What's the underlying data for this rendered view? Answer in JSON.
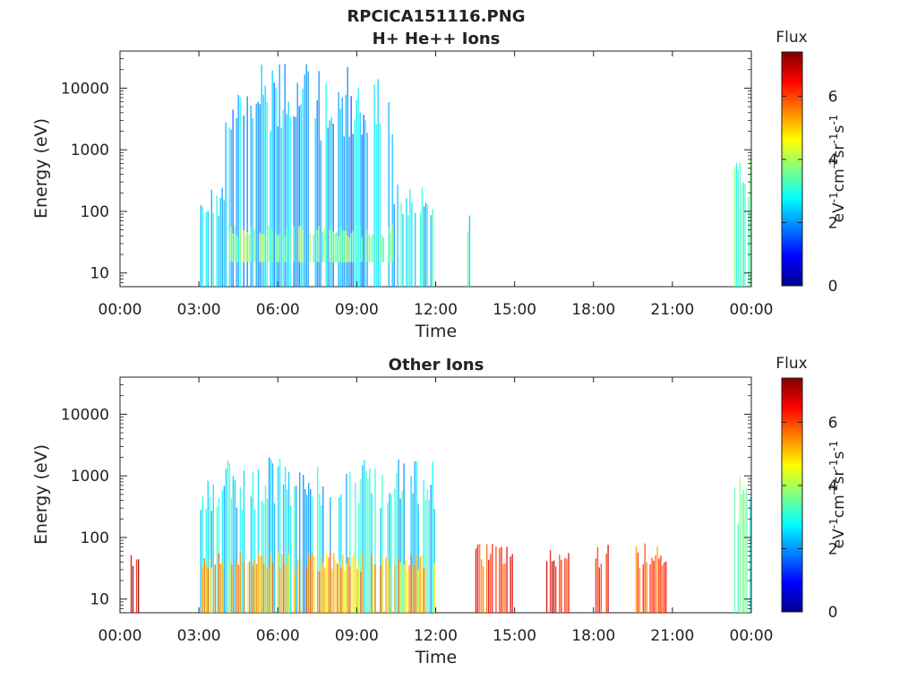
{
  "figure": {
    "title": "RPCICA151116.PNG"
  },
  "colorbar": {
    "title": "Flux",
    "label": "eV-1cm-2sr-1s-1",
    "range": [
      0,
      7.4
    ],
    "ticks": [
      "0",
      "2",
      "4",
      "6"
    ],
    "colormap": [
      "#00008f",
      "#0000ff",
      "#0080ff",
      "#00ffff",
      "#80ff80",
      "#ffff00",
      "#ff8000",
      "#ff0000",
      "#800000"
    ]
  },
  "chart_data": [
    {
      "type": "heatmap",
      "title": "H+ He++ Ions",
      "xlabel": "Time",
      "ylabel": "Energy (eV)",
      "x_ticks": [
        "00:00",
        "03:00",
        "06:00",
        "09:00",
        "12:00",
        "15:00",
        "18:00",
        "21:00",
        "00:00"
      ],
      "xlim_hours": [
        0,
        24
      ],
      "y_ticks": [
        "10",
        "100",
        "1000",
        "10000"
      ],
      "y_scale": "log",
      "ylim": [
        6,
        40000
      ],
      "flux_regions": [
        {
          "t_start": 3.05,
          "t_end": 4.0,
          "e_min": 6,
          "e_max": 300,
          "flux": 2.5
        },
        {
          "t_start": 4.0,
          "t_end": 10.4,
          "e_min": 6,
          "e_max": 25000,
          "flux": 2.2
        },
        {
          "t_start": 4.0,
          "t_end": 10.4,
          "e_min": 15,
          "e_max": 60,
          "flux": 3.6
        },
        {
          "t_start": 10.4,
          "t_end": 12.0,
          "e_min": 6,
          "e_max": 300,
          "flux": 2.6
        },
        {
          "t_start": 13.2,
          "t_end": 13.4,
          "e_min": 6,
          "e_max": 100,
          "flux": 2.8
        },
        {
          "t_start": 23.35,
          "t_end": 24.0,
          "e_min": 6,
          "e_max": 1000,
          "flux": 3.2
        }
      ]
    },
    {
      "type": "heatmap",
      "title": "Other Ions",
      "xlabel": "Time",
      "ylabel": "Energy (eV)",
      "x_ticks": [
        "00:00",
        "03:00",
        "06:00",
        "09:00",
        "12:00",
        "15:00",
        "18:00",
        "21:00",
        "00:00"
      ],
      "xlim_hours": [
        0,
        24
      ],
      "y_ticks": [
        "10",
        "100",
        "1000",
        "10000"
      ],
      "y_scale": "log",
      "ylim": [
        6,
        40000
      ],
      "flux_regions": [
        {
          "t_start": 0.4,
          "t_end": 0.75,
          "e_min": 6,
          "e_max": 80,
          "flux": 6.8
        },
        {
          "t_start": 3.05,
          "t_end": 12.0,
          "e_min": 6,
          "e_max": 2000,
          "flux": 2.6
        },
        {
          "t_start": 3.05,
          "t_end": 12.0,
          "e_min": 6,
          "e_max": 60,
          "flux": 5.2
        },
        {
          "t_start": 13.3,
          "t_end": 15.1,
          "e_min": 6,
          "e_max": 80,
          "flux": 6.2
        },
        {
          "t_start": 16.2,
          "t_end": 17.1,
          "e_min": 6,
          "e_max": 80,
          "flux": 6.5
        },
        {
          "t_start": 18.0,
          "t_end": 18.6,
          "e_min": 6,
          "e_max": 80,
          "flux": 6.5
        },
        {
          "t_start": 19.6,
          "t_end": 20.8,
          "e_min": 6,
          "e_max": 80,
          "flux": 6.0
        },
        {
          "t_start": 23.35,
          "t_end": 24.0,
          "e_min": 6,
          "e_max": 1000,
          "flux": 3.5
        }
      ]
    }
  ]
}
